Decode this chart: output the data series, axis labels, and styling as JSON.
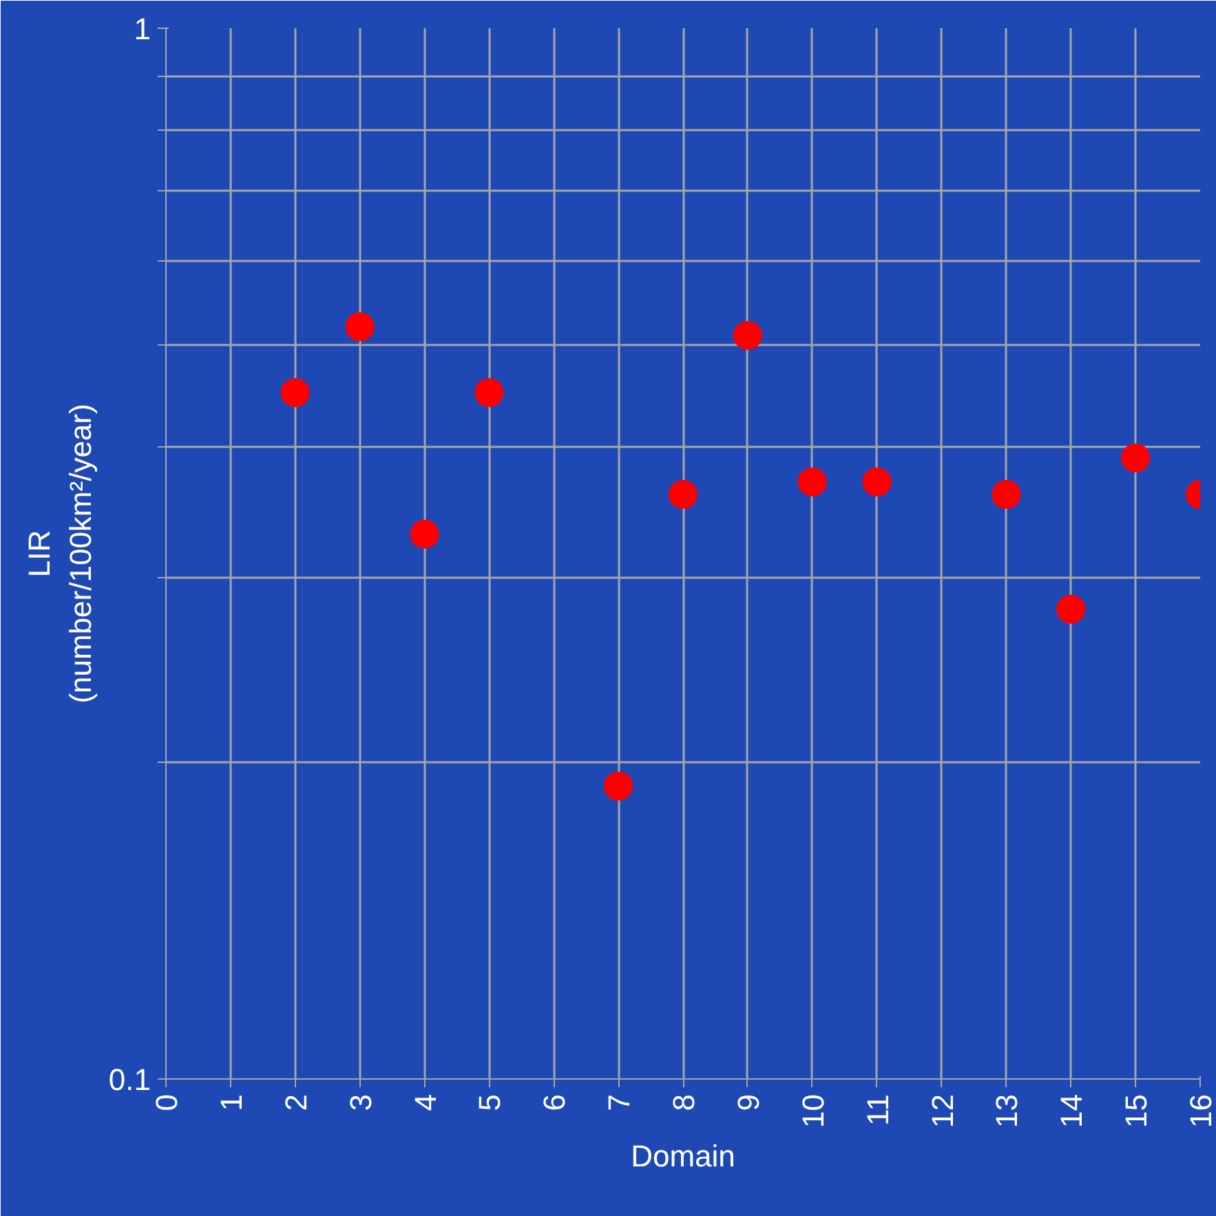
{
  "chart_data": {
    "type": "scatter",
    "xlabel": "Domain",
    "ylabel": "LIR\n(number/100km²/year)",
    "x": [
      2,
      3,
      4,
      5,
      7,
      8,
      9,
      10,
      11,
      13,
      14,
      15,
      16
    ],
    "series": [
      {
        "color": "#ff0000",
        "values": [
          0.45,
          0.52,
          0.33,
          0.45,
          0.19,
          0.36,
          0.51,
          0.37,
          0.37,
          0.36,
          0.28,
          0.39,
          0.36
        ]
      }
    ],
    "xlim": [
      0,
      16
    ],
    "xticks": [
      0,
      1,
      2,
      3,
      4,
      5,
      6,
      7,
      8,
      9,
      10,
      11,
      12,
      13,
      14,
      15,
      16
    ],
    "ylim": [
      0.1,
      1
    ],
    "yticks": [
      0.1,
      {
        "value": 0.2,
        "label": null
      },
      {
        "value": 0.3,
        "label": null
      },
      {
        "value": 0.4,
        "label": null
      },
      {
        "value": 0.5,
        "label": null
      },
      {
        "value": 0.6,
        "label": null
      },
      {
        "value": 0.7,
        "label": null
      },
      {
        "value": 0.8,
        "label": null
      },
      {
        "value": 0.9,
        "label": null
      },
      1
    ],
    "log": "y",
    "grid": true,
    "marker": "circle"
  }
}
